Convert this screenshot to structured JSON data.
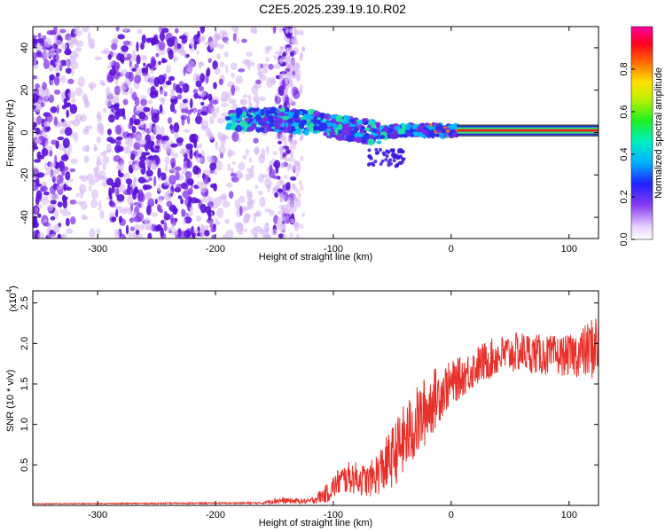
{
  "title": "C2E5.2025.239.19.10.R02",
  "colors": {
    "snr_line": "#e8302a",
    "core_line": "#e81e2a",
    "scatter_low": "#d6b8f5",
    "scatter_mid": "#7a28e8",
    "scatter_high": "#5a10d8"
  },
  "chart_data": [
    {
      "name": "spectrogram",
      "type": "heatmap",
      "xlabel": "Height of straight line (km)",
      "ylabel": "Frequency (Hz)",
      "xlim": [
        -355,
        125
      ],
      "ylim": [
        -50,
        50
      ],
      "xticks": [
        -300,
        -200,
        -100,
        0,
        100
      ],
      "xtick_labels": [
        "-300",
        "-200",
        "-100",
        "0",
        "100"
      ],
      "yticks": [
        -40,
        -20,
        0,
        20,
        40
      ],
      "ytick_labels": [
        "-40",
        "-20",
        "0",
        "20",
        "40"
      ],
      "signal_band": {
        "description_points_km_hz": [
          [
            -190,
            6
          ],
          [
            -150,
            6
          ],
          [
            -120,
            5
          ],
          [
            -100,
            3
          ],
          [
            -80,
            1
          ],
          [
            -60,
            0
          ],
          [
            -40,
            1
          ],
          [
            -20,
            1
          ],
          [
            0,
            1
          ],
          [
            50,
            0.5
          ],
          [
            120,
            1
          ]
        ],
        "core_start_km": 5,
        "core_end_km": 125,
        "core_freq_hz": 1
      },
      "colorbar": {
        "label": "Normalized spectral amplitude",
        "range": [
          0,
          1
        ],
        "ticks": [
          0.0,
          0.2,
          0.4,
          0.6,
          0.8
        ],
        "tick_labels": [
          "0.0",
          "0.2",
          "0.4",
          "0.6",
          "0.8"
        ]
      }
    },
    {
      "name": "snr",
      "type": "line",
      "xlabel": "Height of straight line (km)",
      "ylabel": "SNR (10 * v/v)",
      "multiplier_label": "(x10",
      "multiplier_exp": "4",
      "multiplier_close": ")",
      "xlim": [
        -355,
        125
      ],
      "ylim": [
        0,
        2.65
      ],
      "xticks": [
        -300,
        -200,
        -100,
        0,
        100
      ],
      "xtick_labels": [
        "-300",
        "-200",
        "-100",
        "0",
        "100"
      ],
      "yticks": [
        0.5,
        1.0,
        1.5,
        2.0,
        2.5
      ],
      "ytick_labels": [
        "0.5",
        "1.0",
        "1.5",
        "2.0",
        "2.5"
      ],
      "envelope_x": [
        -355,
        -160,
        -150,
        -120,
        -105,
        -95,
        -85,
        -70,
        -55,
        -40,
        -25,
        -15,
        -5,
        10,
        25,
        40,
        60,
        80,
        100,
        115,
        125
      ],
      "envelope_y": [
        0.02,
        0.03,
        0.06,
        0.05,
        0.15,
        0.3,
        0.35,
        0.3,
        0.5,
        0.8,
        1.1,
        1.3,
        1.45,
        1.6,
        1.75,
        1.85,
        1.9,
        1.85,
        1.85,
        1.9,
        2.0
      ],
      "envelope_noise": [
        0.005,
        0.01,
        0.04,
        0.03,
        0.12,
        0.18,
        0.2,
        0.2,
        0.35,
        0.45,
        0.45,
        0.4,
        0.3,
        0.25,
        0.25,
        0.25,
        0.25,
        0.25,
        0.25,
        0.35,
        0.45
      ]
    }
  ]
}
